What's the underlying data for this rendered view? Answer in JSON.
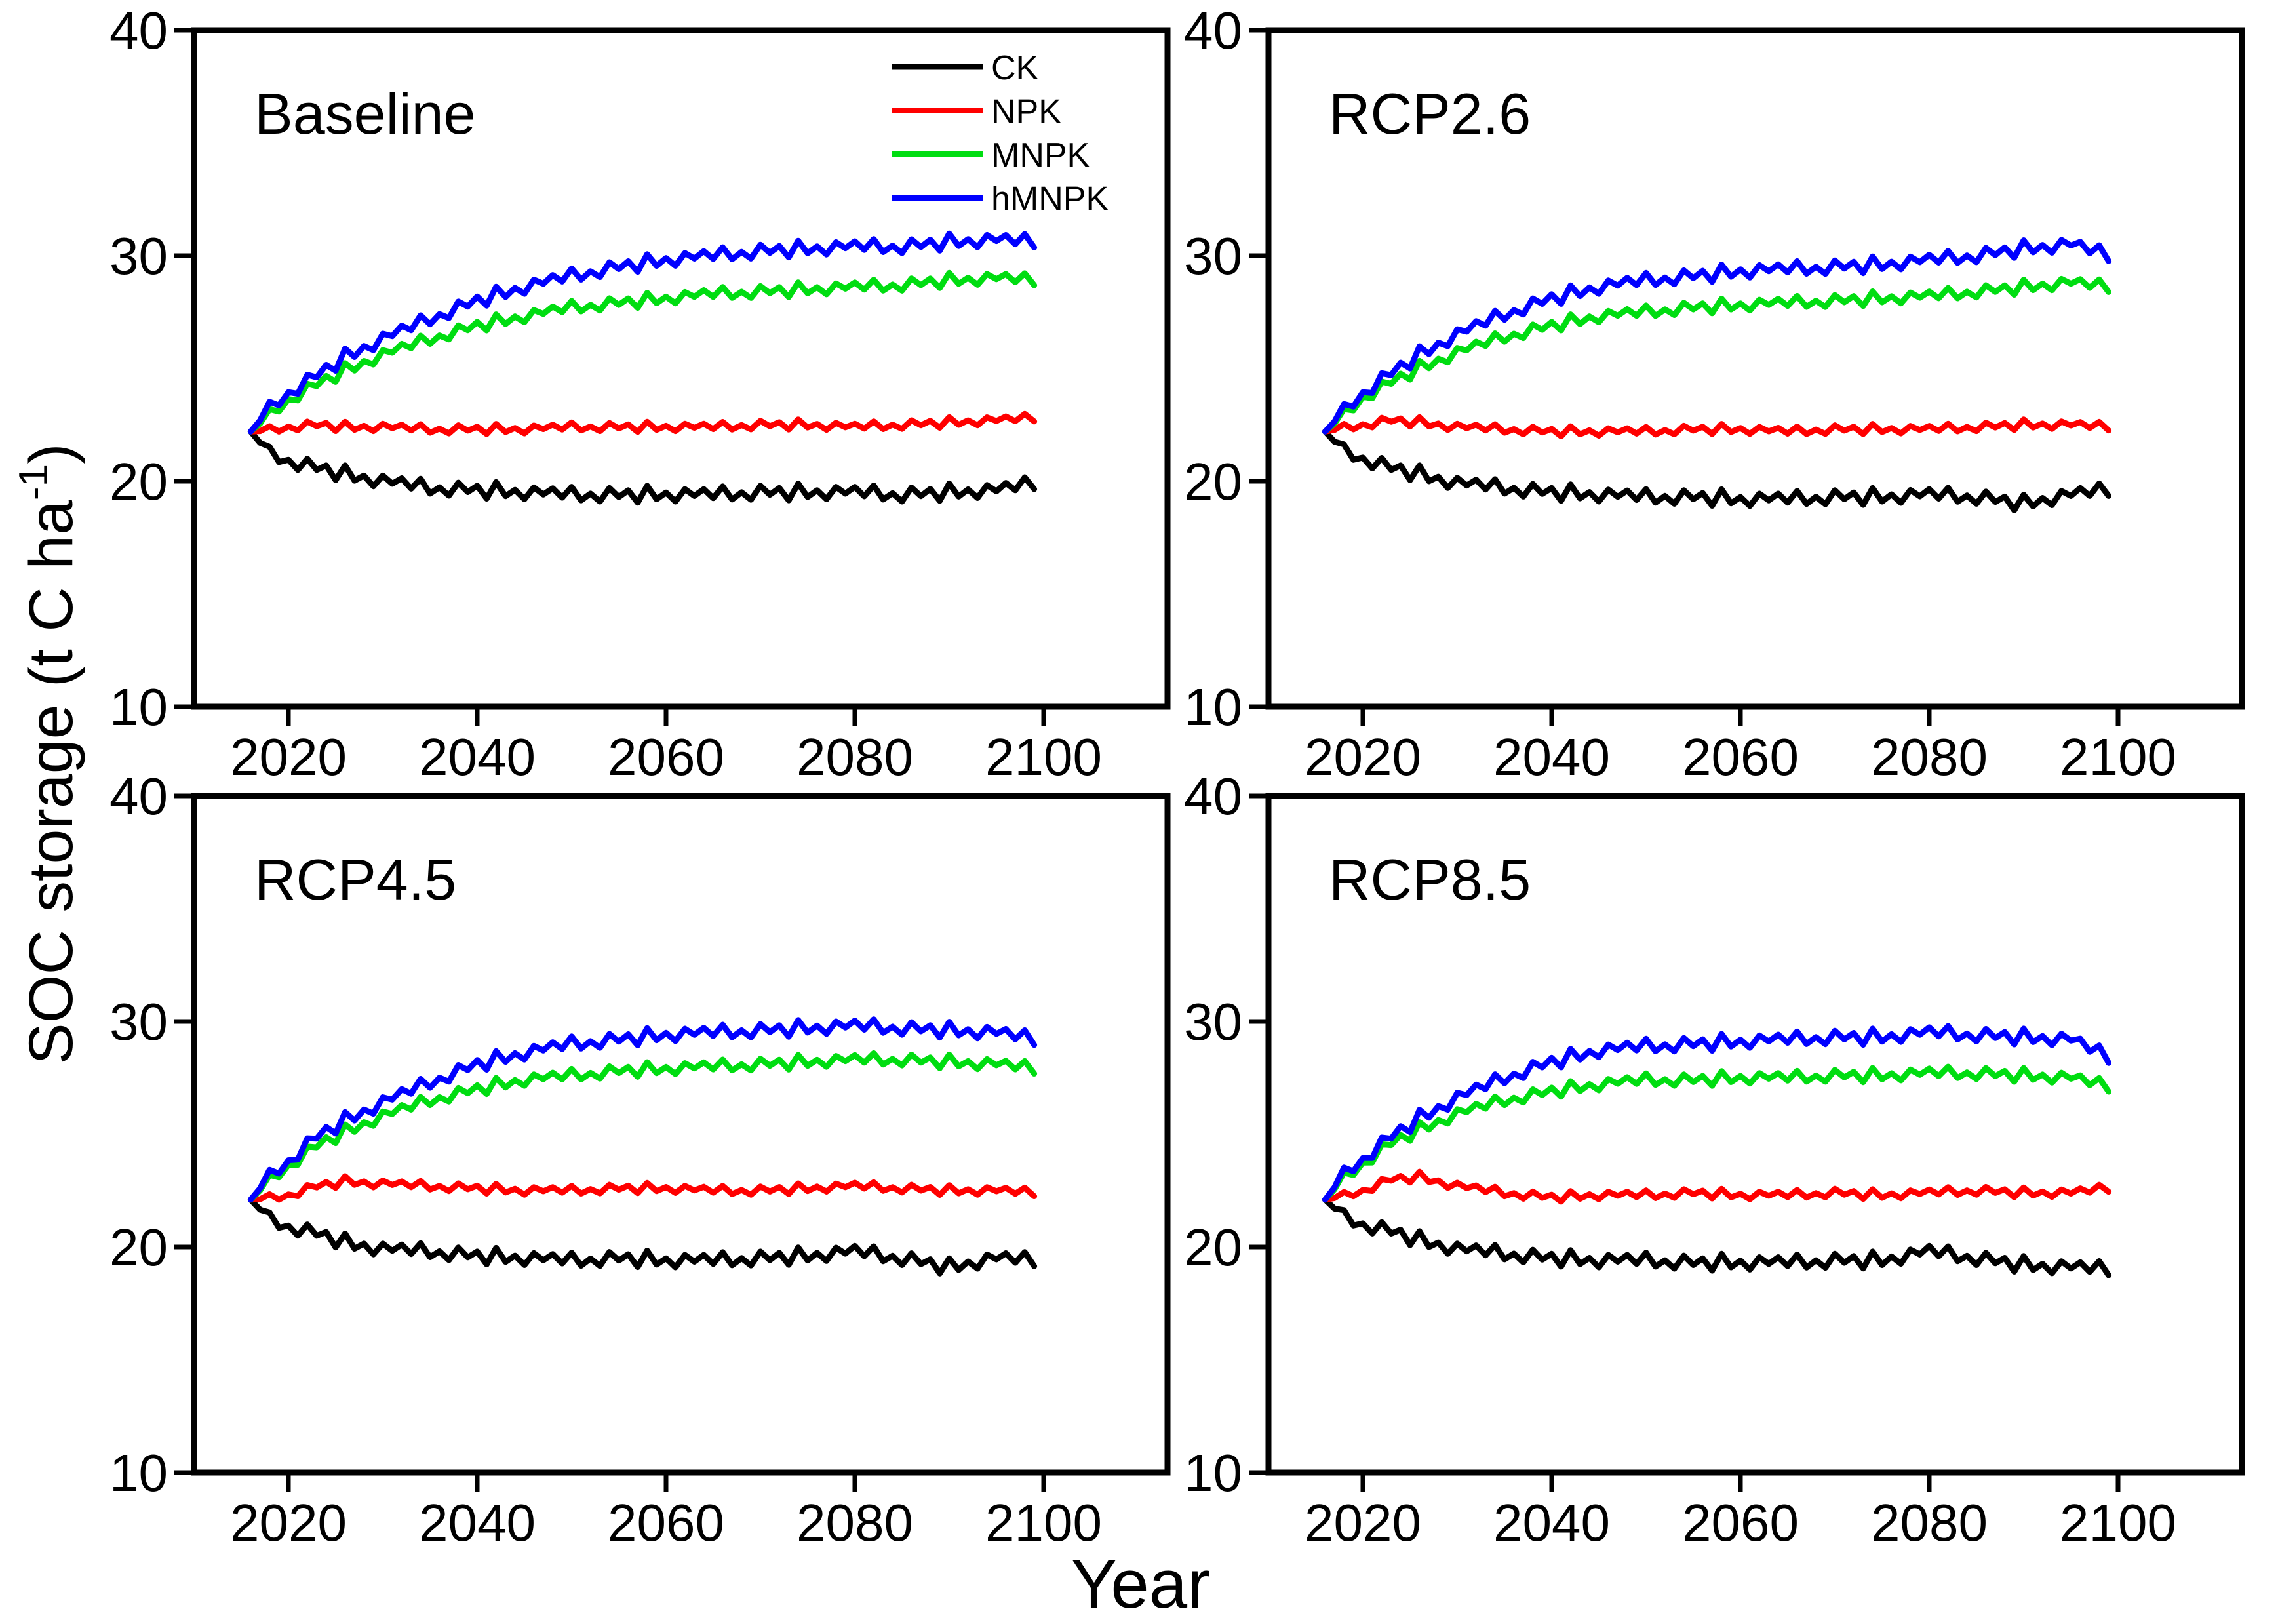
{
  "figure": {
    "x_axis_title": "Year",
    "y_axis_title": "SOC storage (t C ha⁻¹)",
    "y_axis_title_parts": {
      "main": "SOC storage (t C ha",
      "superscript": "-1",
      "close": ")"
    }
  },
  "chart_data": {
    "type": "line",
    "title": "",
    "xlabel": "Year",
    "ylabel": "SOC storage (t C ha-1)",
    "x_ticks": [
      2020,
      2040,
      2060,
      2080,
      2100
    ],
    "y_ticks": [
      40,
      30,
      20,
      10
    ],
    "x_range": [
      2010,
      2113
    ],
    "y_range": [
      10,
      40
    ],
    "grid": "off",
    "series_years": {
      "start": 2016,
      "end": 2099,
      "step": 1
    },
    "legend": {
      "location": "inside-top-left-panel",
      "entries": [
        {
          "label": "CK",
          "color": "#000000"
        },
        {
          "label": "NPK",
          "color": "#ff0000"
        },
        {
          "label": "MNPK",
          "color": "#00dd11"
        },
        {
          "label": "hMNPK",
          "color": "#0000ff"
        }
      ]
    },
    "oscillation": {
      "pattern": [
        0.5,
        -0.3,
        0.7,
        -0.5,
        0.1,
        -0.6,
        0.6,
        -0.2,
        0.4,
        -0.7,
        0.8,
        -0.4,
        0.2,
        -0.6,
        0.5,
        -0.1
      ],
      "ramp_years": 3,
      "amplitudes": {
        "CK": 0.5,
        "NPK": 0.3,
        "MNPK": 0.42,
        "hMNPK": 0.48
      }
    },
    "anchor_years": [
      2016,
      2018,
      2020,
      2023,
      2026,
      2030,
      2035,
      2040,
      2045,
      2050,
      2055,
      2060,
      2065,
      2070,
      2075,
      2080,
      2085,
      2090,
      2095,
      2099
    ],
    "panels": [
      {
        "title": "Baseline",
        "series": [
          {
            "name": "CK",
            "color": "#000000",
            "values": [
              22.2,
              21.3,
              20.9,
              20.6,
              20.3,
              20.0,
              19.7,
              19.6,
              19.5,
              19.4,
              19.4,
              19.4,
              19.4,
              19.5,
              19.5,
              19.5,
              19.4,
              19.5,
              19.6,
              19.9
            ]
          },
          {
            "name": "NPK",
            "color": "#ff0000",
            "values": [
              22.2,
              22.3,
              22.4,
              22.5,
              22.4,
              22.4,
              22.3,
              22.3,
              22.3,
              22.4,
              22.4,
              22.4,
              22.4,
              22.5,
              22.5,
              22.4,
              22.5,
              22.6,
              22.7,
              22.8
            ]
          },
          {
            "name": "MNPK",
            "color": "#00dd11",
            "values": [
              22.2,
              23.0,
              23.6,
              24.3,
              24.9,
              25.6,
              26.3,
              26.9,
              27.3,
              27.7,
              27.9,
              28.1,
              28.3,
              28.4,
              28.5,
              28.6,
              28.7,
              28.9,
              29.0,
              28.9
            ]
          },
          {
            "name": "hMNPK",
            "color": "#0000ff",
            "values": [
              22.2,
              23.3,
              23.9,
              24.7,
              25.5,
              26.3,
              27.2,
              28.0,
              28.6,
              29.1,
              29.5,
              29.8,
              30.0,
              30.2,
              30.3,
              30.4,
              30.4,
              30.6,
              30.7,
              30.6
            ]
          }
        ]
      },
      {
        "title": "RCP2.6",
        "series": [
          {
            "name": "CK",
            "color": "#000000",
            "values": [
              22.2,
              21.4,
              21.0,
              20.6,
              20.3,
              19.9,
              19.7,
              19.5,
              19.4,
              19.3,
              19.3,
              19.2,
              19.2,
              19.3,
              19.3,
              19.4,
              19.3,
              19.0,
              19.4,
              19.6
            ]
          },
          {
            "name": "NPK",
            "color": "#ff0000",
            "values": [
              22.2,
              22.4,
              22.5,
              22.7,
              22.6,
              22.4,
              22.3,
              22.2,
              22.2,
              22.2,
              22.3,
              22.3,
              22.2,
              22.3,
              22.3,
              22.3,
              22.4,
              22.5,
              22.5,
              22.4
            ]
          },
          {
            "name": "MNPK",
            "color": "#00dd11",
            "values": [
              22.2,
              23.0,
              23.7,
              24.4,
              25.0,
              25.7,
              26.4,
              26.9,
              27.3,
              27.5,
              27.7,
              27.8,
              27.9,
              28.0,
              28.1,
              28.2,
              28.4,
              28.6,
              28.8,
              28.6
            ]
          },
          {
            "name": "hMNPK",
            "color": "#0000ff",
            "values": [
              22.2,
              23.2,
              23.9,
              24.8,
              25.6,
              26.5,
              27.4,
              28.1,
              28.6,
              28.9,
              29.1,
              29.3,
              29.4,
              29.5,
              29.6,
              29.8,
              30.0,
              30.3,
              30.5,
              30.0
            ]
          }
        ]
      },
      {
        "title": "RCP4.5",
        "series": [
          {
            "name": "CK",
            "color": "#000000",
            "values": [
              22.1,
              21.3,
              20.9,
              20.6,
              20.2,
              19.9,
              19.8,
              19.6,
              19.5,
              19.4,
              19.5,
              19.4,
              19.4,
              19.5,
              19.6,
              19.8,
              19.5,
              19.1,
              19.5,
              19.4
            ]
          },
          {
            "name": "NPK",
            "color": "#ff0000",
            "values": [
              22.1,
              22.2,
              22.3,
              22.7,
              22.9,
              22.8,
              22.7,
              22.6,
              22.5,
              22.5,
              22.6,
              22.6,
              22.5,
              22.5,
              22.6,
              22.7,
              22.6,
              22.5,
              22.5,
              22.4
            ]
          },
          {
            "name": "MNPK",
            "color": "#00dd11",
            "values": [
              22.1,
              23.0,
              23.6,
              24.5,
              25.1,
              25.8,
              26.5,
              27.0,
              27.4,
              27.6,
              27.8,
              27.9,
              28.0,
              28.1,
              28.2,
              28.3,
              28.3,
              28.2,
              28.1,
              27.9
            ]
          },
          {
            "name": "hMNPK",
            "color": "#0000ff",
            "values": [
              22.1,
              23.2,
              23.8,
              24.9,
              25.6,
              26.4,
              27.3,
              28.1,
              28.6,
              29.0,
              29.2,
              29.4,
              29.5,
              29.6,
              29.7,
              29.8,
              29.7,
              29.6,
              29.5,
              29.2
            ]
          }
        ]
      },
      {
        "title": "RCP8.5",
        "series": [
          {
            "name": "CK",
            "color": "#000000",
            "values": [
              22.1,
              21.4,
              21.0,
              20.7,
              20.3,
              19.9,
              19.7,
              19.5,
              19.4,
              19.4,
              19.3,
              19.3,
              19.3,
              19.4,
              19.4,
              19.8,
              19.5,
              19.2,
              19.1,
              19.0
            ]
          },
          {
            "name": "NPK",
            "color": "#ff0000",
            "values": [
              22.1,
              22.3,
              22.5,
              23.0,
              23.1,
              22.7,
              22.4,
              22.2,
              22.3,
              22.3,
              22.4,
              22.3,
              22.3,
              22.4,
              22.3,
              22.4,
              22.5,
              22.4,
              22.4,
              22.6
            ]
          },
          {
            "name": "MNPK",
            "color": "#00dd11",
            "values": [
              22.1,
              23.1,
              23.7,
              24.6,
              25.2,
              25.9,
              26.5,
              26.9,
              27.2,
              27.4,
              27.4,
              27.5,
              27.5,
              27.6,
              27.6,
              27.7,
              27.7,
              27.6,
              27.5,
              27.1
            ]
          },
          {
            "name": "hMNPK",
            "color": "#0000ff",
            "values": [
              22.1,
              23.3,
              23.9,
              24.9,
              25.7,
              26.6,
              27.5,
              28.2,
              28.7,
              28.9,
              29.0,
              29.1,
              29.2,
              29.3,
              29.3,
              29.5,
              29.4,
              29.3,
              29.2,
              28.4
            ]
          }
        ]
      }
    ]
  }
}
